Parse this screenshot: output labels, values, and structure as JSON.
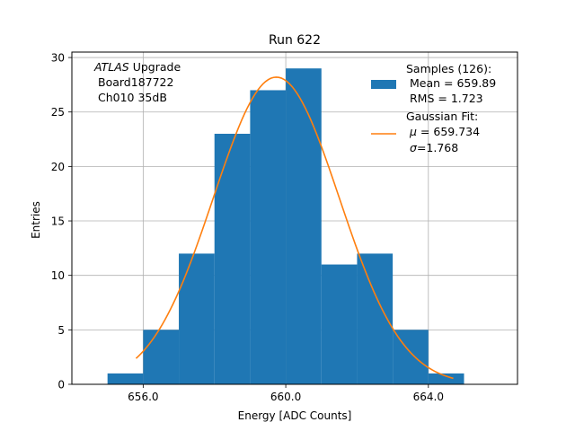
{
  "chart_data": {
    "type": "bar",
    "title": "Run 622",
    "xlabel": "Energy [ADC Counts]",
    "ylabel": "Entries",
    "xlim": [
      654.0,
      666.5
    ],
    "ylim": [
      0,
      30.5
    ],
    "grid": true,
    "xticks": [
      656.0,
      660.0,
      664.0
    ],
    "xtick_labels": [
      "656.0",
      "660.0",
      "664.0"
    ],
    "yticks": [
      0,
      5,
      10,
      15,
      20,
      25,
      30
    ],
    "ytick_labels": [
      "0",
      "5",
      "10",
      "15",
      "20",
      "25",
      "30"
    ],
    "bin_edges": [
      655,
      656,
      657,
      658,
      659,
      660,
      661,
      662,
      663,
      664,
      665
    ],
    "values": [
      1,
      5,
      12,
      23,
      27,
      29,
      11,
      12,
      5,
      1
    ],
    "bar_color": "#1f77b4",
    "fit": {
      "type": "gaussian",
      "color": "#ff7f0e",
      "amplitude": 28.2,
      "mu": 659.734,
      "sigma": 1.768,
      "x_range": [
        655.8,
        664.7
      ]
    },
    "annotation": {
      "italic": "ATLAS",
      "normal": " Upgrade",
      "line2": "Board187722",
      "line3": "Ch010 35dB"
    },
    "legend": {
      "placement": "top-right",
      "samples_title": "Samples (126):",
      "samples_mean": "Mean = 659.89",
      "samples_rms": "RMS = 1.723",
      "fit_title": "Gaussian Fit:",
      "fit_mu_symbol": "μ",
      "fit_mu_value": " = 659.734",
      "fit_sigma_symbol": "σ",
      "fit_sigma_value": "=1.768"
    }
  }
}
